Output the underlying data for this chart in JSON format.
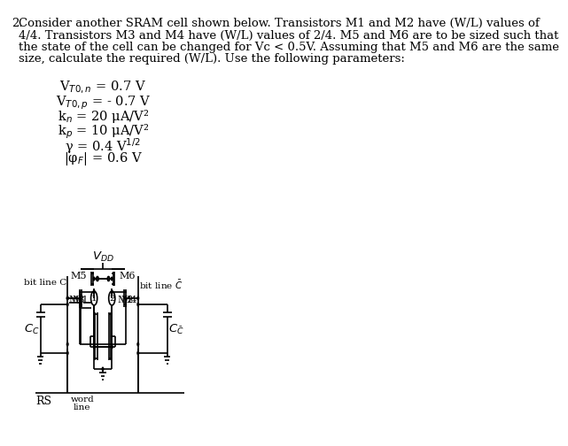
{
  "text_lines": [
    "Consider another SRAM cell shown below. Transistors M1 and M2 have (W/L) values of",
    "4/4. Transistors M3 and M4 have (W/L) values of 2/4. M5 and M6 are to be sized such that",
    "the state of the cell can be changed for Vc < 0.5V. Assuming that M5 and M6 are the same",
    "size, calculate the required (W/L). Use the following parameters:"
  ],
  "problem_num": "2.",
  "params": [
    "V$_{T0,n}$ = 0.7 V",
    "V$_{T0,p}$ = - 0.7 V",
    "k$_{n}$ = 20 μA/V²",
    "k$_{p}$ = 10 μA/V²",
    "γ = 0.4 V$^{1/2}$",
    "|φ$_{F}$| = 0.6 V"
  ],
  "bg_color": "#ffffff",
  "text_color": "#000000"
}
